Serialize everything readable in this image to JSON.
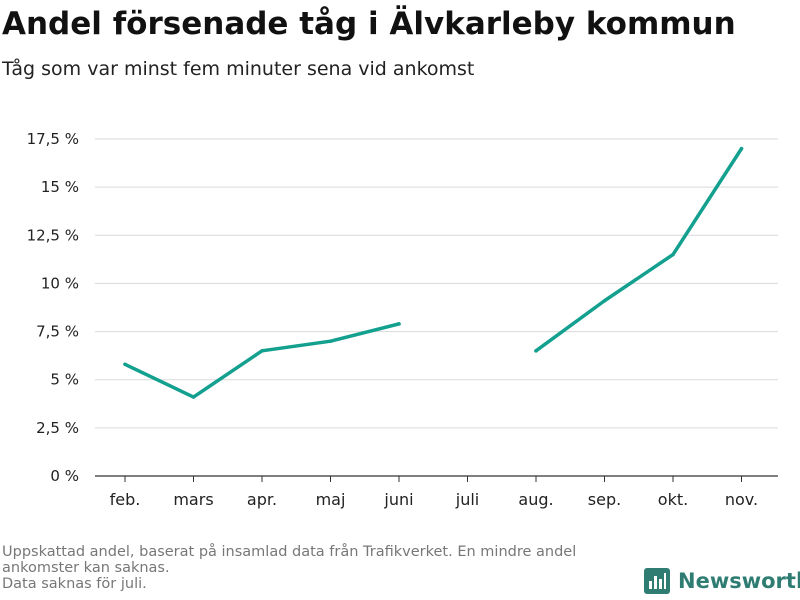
{
  "header": {
    "title": "Andel försenade tåg i Älvkarleby kommun",
    "subtitle": "Tåg som var minst fem minuter sena vid ankomst"
  },
  "footnote": {
    "line1": "Uppskattad andel, baserat på insamlad data från Trafikverket. En mindre andel",
    "line2": "ankomster kan saknas.",
    "line3": "Data saknas för juli."
  },
  "brand": {
    "name": "Newsworthy",
    "icon": "bar-chart-logo-icon",
    "color": "#2f7d72"
  },
  "chart_data": {
    "type": "line",
    "title": "Andel försenade tåg i Älvkarleby kommun",
    "subtitle": "Tåg som var minst fem minuter sena vid ankomst",
    "xlabel": "",
    "ylabel": "",
    "categories": [
      "feb.",
      "mars",
      "apr.",
      "maj",
      "juni",
      "juli",
      "aug.",
      "sep.",
      "okt.",
      "nov."
    ],
    "series": [
      {
        "values": [
          5.8,
          4.1,
          6.5,
          7.0,
          7.9,
          null,
          6.5,
          9.1,
          11.5,
          17.0
        ],
        "color": "#13a08f"
      }
    ],
    "ylim": [
      0,
      17.5
    ],
    "yticks": [
      0,
      2.5,
      5,
      7.5,
      10,
      12.5,
      15,
      17.5
    ],
    "ytick_labels": [
      "0 %",
      "2,5 %",
      "5 %",
      "7,5 %",
      "10 %",
      "12,5 %",
      "15 %",
      "17,5 %"
    ],
    "grid": true,
    "legend": "none"
  }
}
